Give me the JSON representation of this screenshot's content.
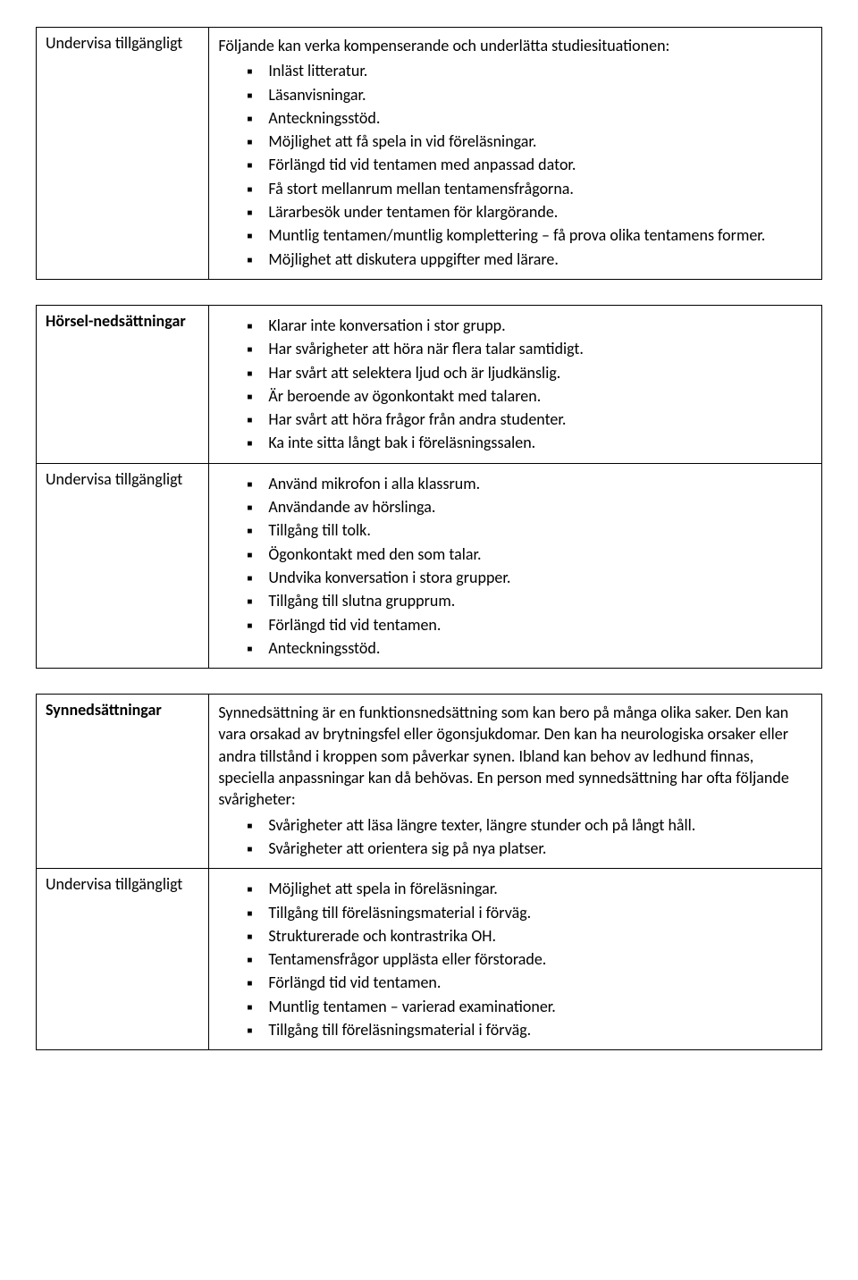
{
  "table1": {
    "left_label": "Undervisa tillgängligt",
    "intro": "Följande kan verka kompenserande och underlätta studiesituationen:",
    "items": [
      "Inläst litteratur.",
      "Läsanvisningar.",
      "Anteckningsstöd.",
      "Möjlighet att få spela in vid föreläsningar.",
      "Förlängd tid vid tentamen med anpassad dator.",
      "Få stort mellanrum mellan tentamensfrågorna.",
      "Lärarbesök under tentamen för klargörande.",
      "Muntlig tentamen/muntlig komplettering – få prova olika tentamens former.",
      "Möjlighet att diskutera uppgifter med lärare."
    ]
  },
  "table2": {
    "row1": {
      "left_label": "Hörsel-nedsättningar",
      "items": [
        "Klarar inte konversation i stor grupp.",
        "Har svårigheter att höra när flera talar samtidigt.",
        "Har svårt att selektera ljud och är ljudkänslig.",
        "Är beroende av ögonkontakt med talaren.",
        "Har svårt att höra frågor från andra studenter.",
        "Ka inte sitta långt bak i föreläsningssalen."
      ]
    },
    "row2": {
      "left_label": "Undervisa tillgängligt",
      "items": [
        "Använd mikrofon i alla klassrum.",
        "Användande av hörslinga.",
        "Tillgång till tolk.",
        "Ögonkontakt med den som talar.",
        "Undvika konversation i stora grupper.",
        "Tillgång till slutna grupprum.",
        "Förlängd tid vid tentamen.",
        "Anteckningsstöd."
      ]
    }
  },
  "table3": {
    "row1": {
      "left_label": "Synnedsättningar",
      "intro": "Synnedsättning är en funktionsnedsättning som kan bero på många olika saker. Den kan vara orsakad av brytningsfel eller ögonsjukdomar. Den kan ha neurologiska orsaker eller andra tillstånd i kroppen som påverkar synen. Ibland kan behov av ledhund finnas, speciella anpassningar kan då behövas. En person med synnedsättning har ofta följande svårigheter:",
      "items": [
        "Svårigheter att läsa längre texter, längre stunder och på långt håll.",
        "Svårigheter att orientera sig på nya platser."
      ]
    },
    "row2": {
      "left_label": "Undervisa tillgängligt",
      "items": [
        "Möjlighet att spela in föreläsningar.",
        "Tillgång till föreläsningsmaterial i förväg.",
        "Strukturerade och kontrastrika OH.",
        "Tentamensfrågor upplästa eller förstorade.",
        "Förlängd tid vid tentamen.",
        "Muntlig tentamen – varierad examinationer.",
        "Tillgång till föreläsningsmaterial i förväg."
      ]
    }
  }
}
